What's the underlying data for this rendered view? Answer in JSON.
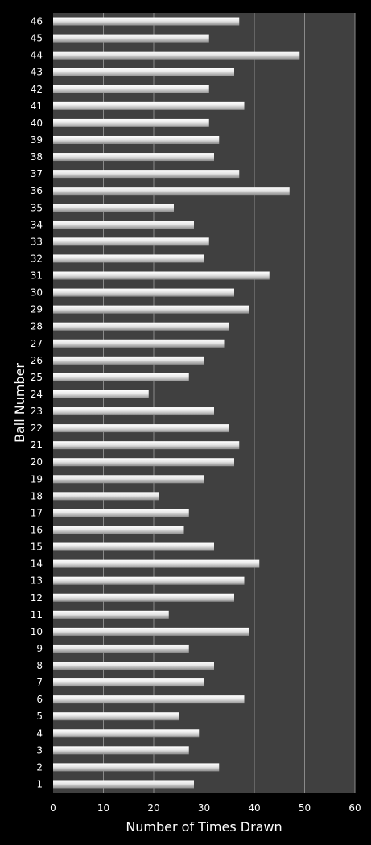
{
  "chart_data": {
    "type": "bar",
    "orientation": "horizontal",
    "title": "",
    "xlabel": "Number of Times Drawn",
    "ylabel": "Ball Number",
    "xlim": [
      0,
      60
    ],
    "xticks": [
      0,
      10,
      20,
      30,
      40,
      50,
      60
    ],
    "grid": "vertical-major",
    "legend": "none",
    "categories": [
      "1",
      "2",
      "3",
      "4",
      "5",
      "6",
      "7",
      "8",
      "9",
      "10",
      "11",
      "12",
      "13",
      "14",
      "15",
      "16",
      "17",
      "18",
      "19",
      "20",
      "21",
      "22",
      "23",
      "24",
      "25",
      "26",
      "27",
      "28",
      "29",
      "30",
      "31",
      "32",
      "33",
      "34",
      "35",
      "36",
      "37",
      "38",
      "39",
      "40",
      "41",
      "42",
      "43",
      "44",
      "45",
      "46"
    ],
    "values": [
      28,
      33,
      27,
      29,
      25,
      38,
      30,
      32,
      27,
      39,
      23,
      36,
      38,
      41,
      32,
      26,
      27,
      21,
      30,
      36,
      37,
      35,
      32,
      19,
      27,
      30,
      34,
      35,
      39,
      36,
      43,
      30,
      31,
      28,
      24,
      47,
      37,
      32,
      33,
      31,
      38,
      31,
      36,
      49,
      31,
      37
    ],
    "colors": {
      "background": "#000000",
      "plot_area": "#404040",
      "bar_light": "#ffffff",
      "bar_dark": "#8c8c8c",
      "gridline": "#8a8a8a",
      "text": "#ffffff"
    }
  }
}
